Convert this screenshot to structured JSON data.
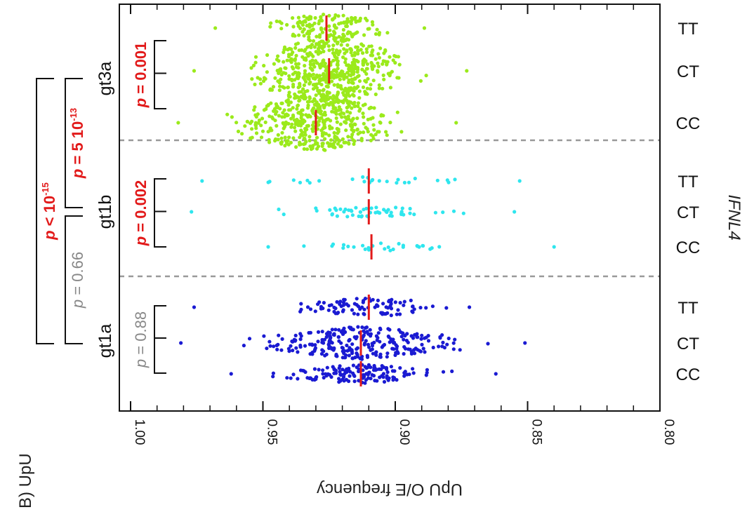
{
  "panel_label": "B) UpU",
  "chart_data": {
    "type": "scatter",
    "orientation": "rotated-90-ccw",
    "ylabel": "UpU O/E frequency",
    "yaxis_reversed": true,
    "ylim": [
      1.0,
      0.8
    ],
    "y_ticks": [
      "1.00",
      "0.95",
      "0.90",
      "0.85",
      "0.80"
    ],
    "grid": false,
    "gene_label": "IFNL4",
    "groups": [
      {
        "name": "gt1a",
        "color": "#1a1ad2",
        "within_test": {
          "prefix": "p",
          "value": "= 0.88",
          "color": "#888888"
        },
        "genotypes": [
          {
            "label": "CC",
            "median": 0.913,
            "range": [
              0.862,
              0.962
            ],
            "n_points": 140
          },
          {
            "label": "CT",
            "median": 0.913,
            "range": [
              0.851,
              0.981
            ],
            "n_points": 260
          },
          {
            "label": "TT",
            "median": 0.91,
            "range": [
              0.872,
              0.976
            ],
            "n_points": 90
          }
        ]
      },
      {
        "name": "gt1b",
        "color": "#2ee6ee",
        "within_test": {
          "prefix": "p",
          "value": "= 0.002",
          "color": "#e21a1a"
        },
        "genotypes": [
          {
            "label": "CC",
            "median": 0.909,
            "range": [
              0.84,
              0.948
            ],
            "n_points": 28
          },
          {
            "label": "CT",
            "median": 0.91,
            "range": [
              0.855,
              0.977
            ],
            "n_points": 55
          },
          {
            "label": "TT",
            "median": 0.91,
            "range": [
              0.853,
              0.973
            ],
            "n_points": 25
          }
        ]
      },
      {
        "name": "gt3a",
        "color": "#9bea1b",
        "within_test": {
          "prefix": "p",
          "value": "= 0.001",
          "color": "#e21a1a"
        },
        "genotypes": [
          {
            "label": "CC",
            "median": 0.93,
            "range": [
              0.877,
              0.982
            ],
            "n_points": 420
          },
          {
            "label": "CT",
            "median": 0.925,
            "range": [
              0.873,
              0.976
            ],
            "n_points": 520
          },
          {
            "label": "TT",
            "median": 0.926,
            "range": [
              0.889,
              0.968
            ],
            "n_points": 140
          }
        ]
      }
    ],
    "between_tests": [
      {
        "groups": [
          "gt1a",
          "gt3a"
        ],
        "prefix": "p",
        "text": "< 10",
        "exp": "-15",
        "color": "#e21a1a"
      },
      {
        "groups": [
          "gt1b",
          "gt3a"
        ],
        "prefix": "p",
        "text": "= 5 10",
        "exp": "-13",
        "color": "#e21a1a"
      },
      {
        "groups": [
          "gt1a",
          "gt1b"
        ],
        "prefix": "p",
        "text": "= 0.66",
        "exp": "",
        "color": "#888888"
      }
    ]
  }
}
